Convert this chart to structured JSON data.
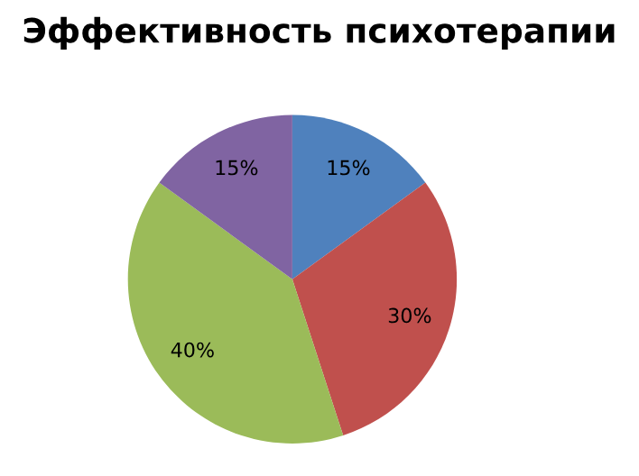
{
  "chart_data": {
    "type": "pie",
    "title": "Эффективность психотерапии",
    "categories": [
      null,
      null,
      null,
      null
    ],
    "values": [
      15,
      30,
      40,
      15
    ],
    "value_labels": [
      "15%",
      "30%",
      "40%",
      "15%"
    ],
    "colors": [
      "#4f81bd",
      "#c0504d",
      "#9bbb59",
      "#8064a2"
    ]
  }
}
